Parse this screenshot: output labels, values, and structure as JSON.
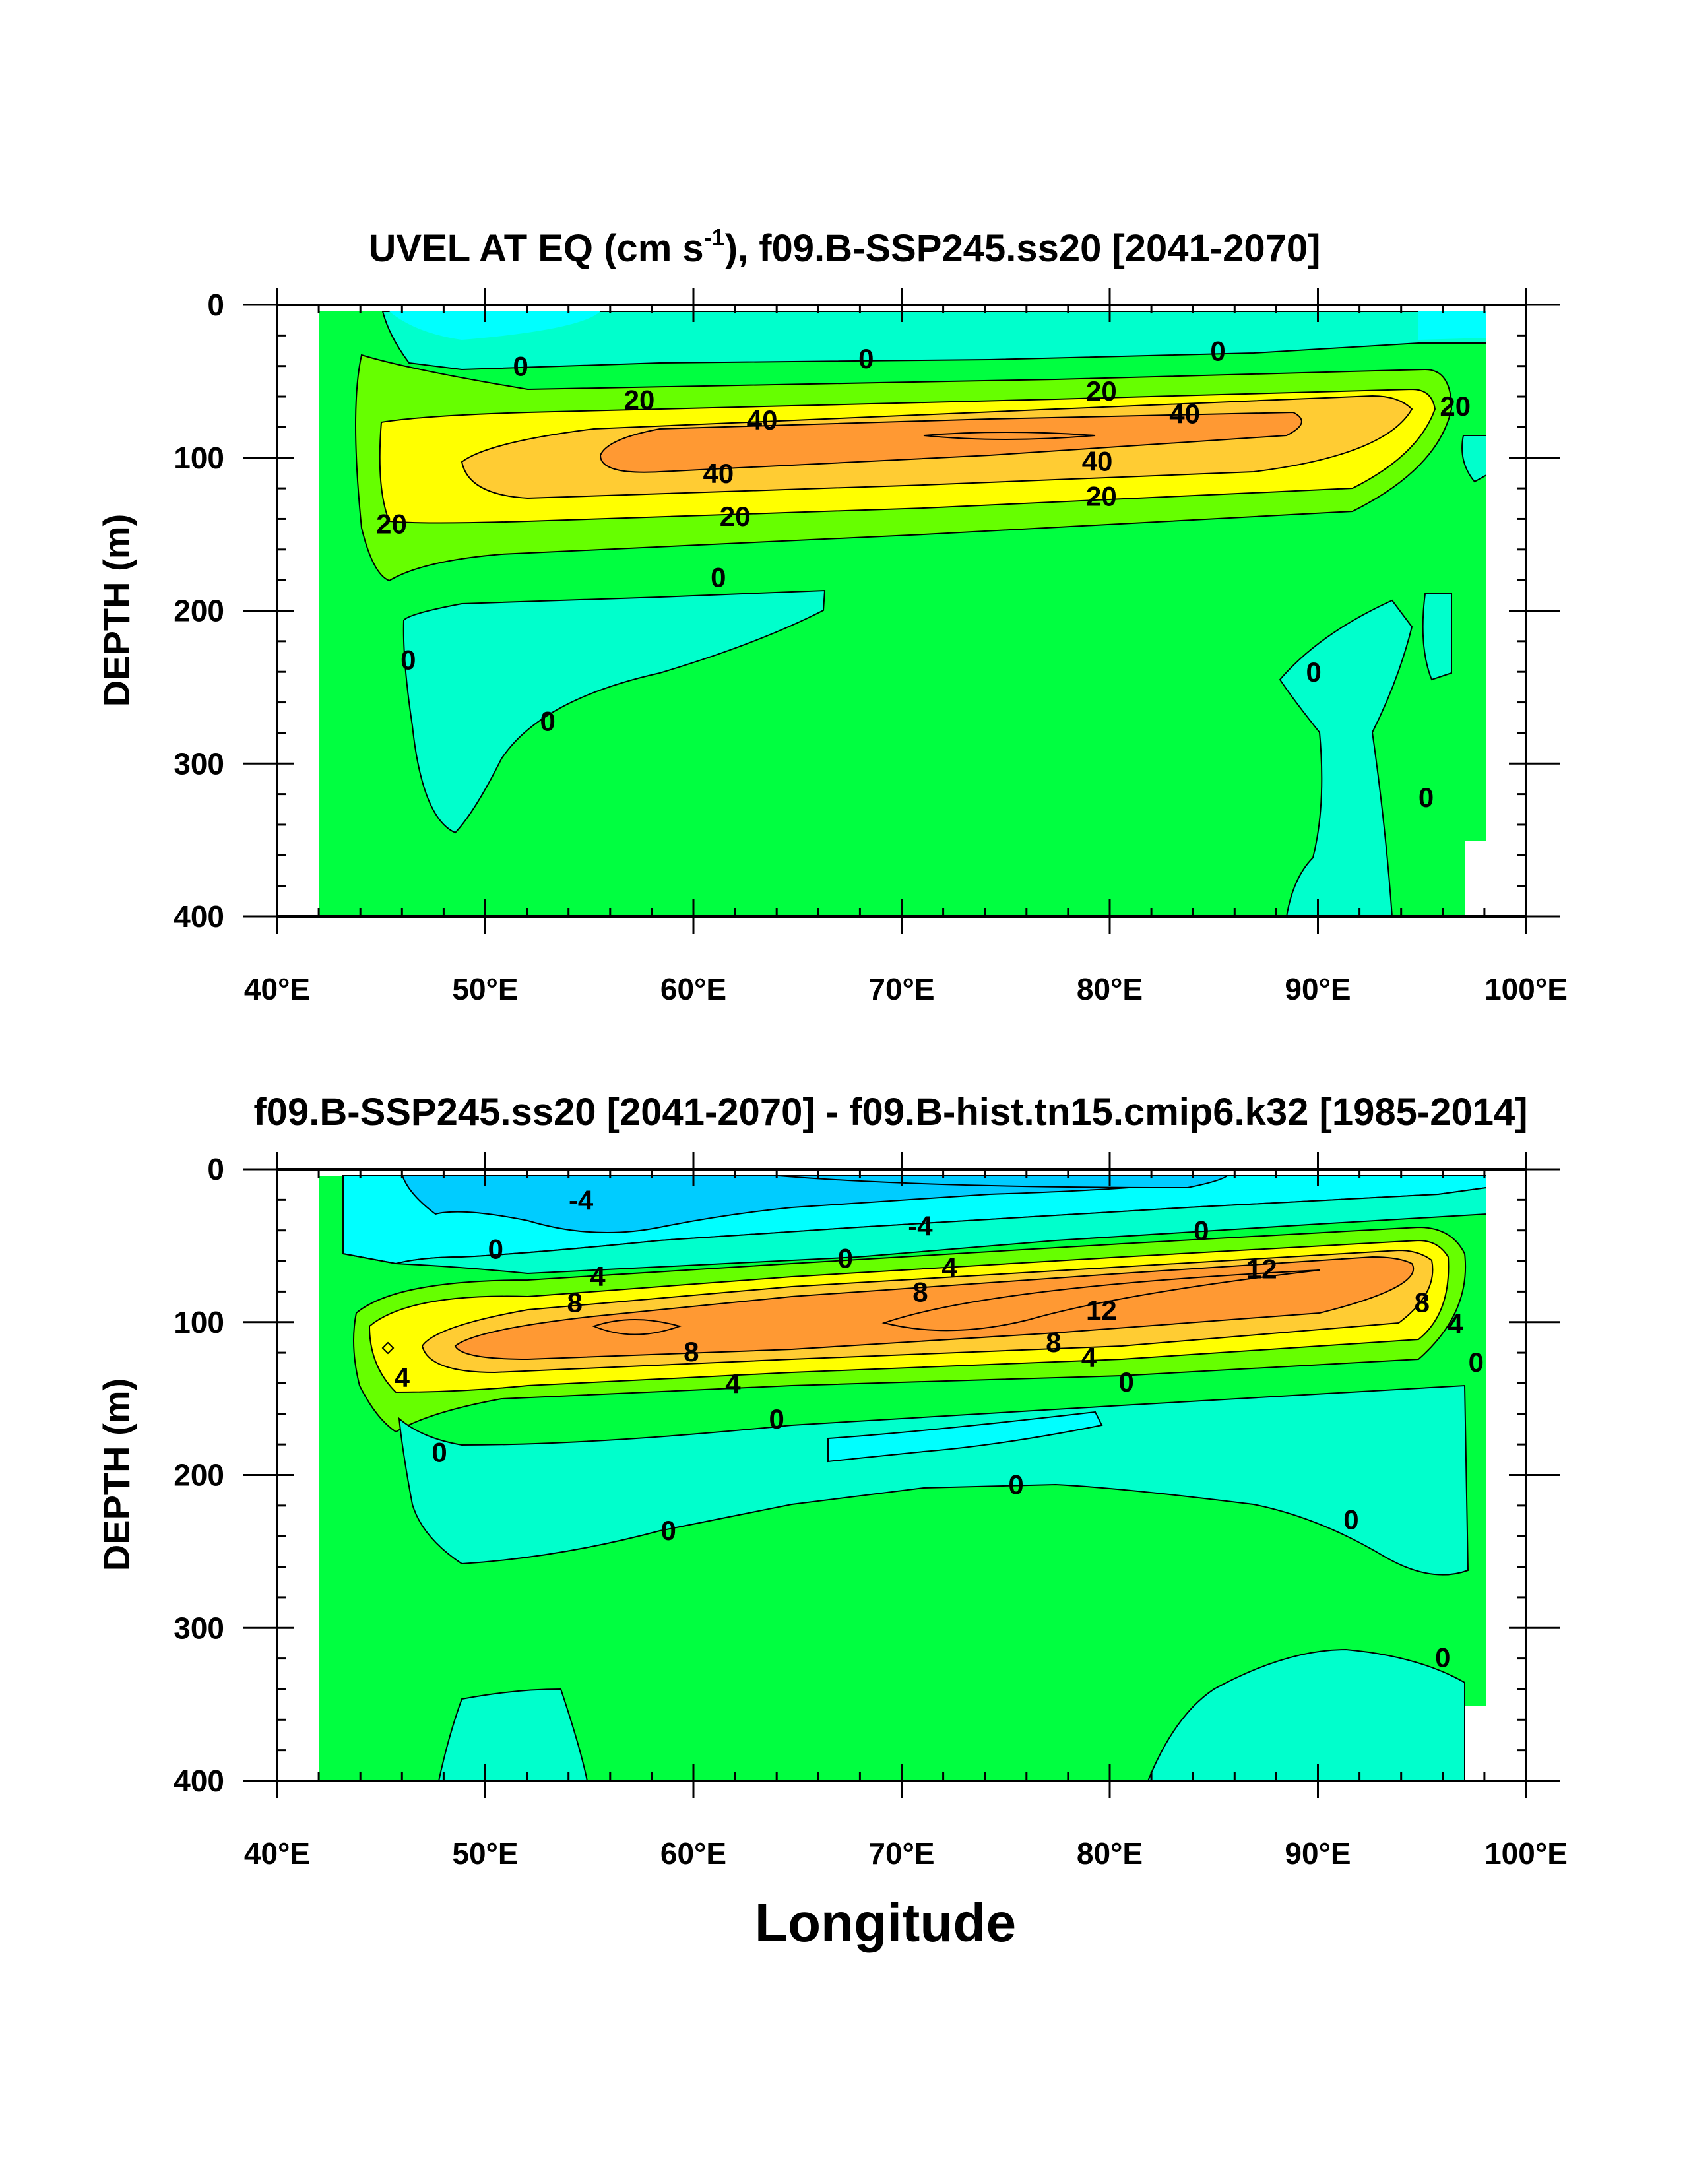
{
  "chart_data": [
    {
      "type": "contour",
      "title": "UVEL AT EQ (cm s",
      "title_sup": "-1",
      "title_rest": "), f09.B-SSP245.ss20 [2041-2070]",
      "ylabel": "DEPTH (m)",
      "xlabel": "",
      "xlim": [
        40,
        100
      ],
      "ylim": [
        0,
        400
      ],
      "y_inverted": true,
      "xticks": [
        40,
        50,
        60,
        70,
        80,
        90,
        100
      ],
      "xtick_labels": [
        "40°E",
        "50°E",
        "60°E",
        "70°E",
        "80°E",
        "90°E",
        "100°E"
      ],
      "yticks": [
        0,
        100,
        200,
        300,
        400
      ],
      "ytick_labels": [
        "0",
        "100",
        "200",
        "300",
        "400"
      ],
      "contour_levels": [
        0,
        20,
        40
      ],
      "fill_colors": {
        "below_zero": "#00ffcc",
        "zero_to_20": "#00ff40",
        "twenty_to_30": "#66ff00",
        "thirty_to_40": "#ffff00",
        "above_40": "#ffcc33",
        "max": "#ff9933",
        "surface": "#00ffff"
      },
      "contour_labels": [
        {
          "text": "0",
          "x": 51.7,
          "y": 40
        },
        {
          "text": "0",
          "x": 68.3,
          "y": 35
        },
        {
          "text": "0",
          "x": 85.2,
          "y": 30
        },
        {
          "text": "20",
          "x": 57.4,
          "y": 62
        },
        {
          "text": "20",
          "x": 79.6,
          "y": 56
        },
        {
          "text": "20",
          "x": 96.6,
          "y": 66
        },
        {
          "text": "40",
          "x": 63.3,
          "y": 75
        },
        {
          "text": "40",
          "x": 83.6,
          "y": 71
        },
        {
          "text": "40",
          "x": 61.2,
          "y": 110
        },
        {
          "text": "40",
          "x": 79.4,
          "y": 102
        },
        {
          "text": "20",
          "x": 45.5,
          "y": 143
        },
        {
          "text": "20",
          "x": 62.0,
          "y": 138
        },
        {
          "text": "20",
          "x": 79.6,
          "y": 125
        },
        {
          "text": "0",
          "x": 61.2,
          "y": 178
        },
        {
          "text": "0",
          "x": 46.3,
          "y": 232
        },
        {
          "text": "0",
          "x": 53.0,
          "y": 272
        },
        {
          "text": "0",
          "x": 89.8,
          "y": 240
        },
        {
          "text": "0",
          "x": 95.2,
          "y": 322
        }
      ]
    },
    {
      "type": "contour",
      "title": "f09.B-SSP245.ss20 [2041-2070] - f09.B-hist.tn15.cmip6.k32 [1985-2014]",
      "ylabel": "DEPTH (m)",
      "xlabel": "Longitude",
      "xlim": [
        40,
        100
      ],
      "ylim": [
        0,
        400
      ],
      "y_inverted": true,
      "xticks": [
        40,
        50,
        60,
        70,
        80,
        90,
        100
      ],
      "xtick_labels": [
        "40°E",
        "50°E",
        "60°E",
        "70°E",
        "80°E",
        "90°E",
        "100°E"
      ],
      "yticks": [
        0,
        100,
        200,
        300,
        400
      ],
      "ytick_labels": [
        "0",
        "100",
        "200",
        "300",
        "400"
      ],
      "contour_levels": [
        -4,
        0,
        4,
        8,
        12
      ],
      "fill_colors": {
        "below_minus4": "#00ccff",
        "minus4_to_0": "#00ffff",
        "slightly_negative": "#00ffcc",
        "zero_to_2": "#00ff40",
        "two_to_4": "#66ff00",
        "four_to_6": "#ffff00",
        "six_to_8": "#ffcc33",
        "above_8": "#ff9933"
      },
      "contour_labels": [
        {
          "text": "-4",
          "x": 54.6,
          "y": 20
        },
        {
          "text": "-4",
          "x": 70.9,
          "y": 37
        },
        {
          "text": "0",
          "x": 50.5,
          "y": 52
        },
        {
          "text": "0",
          "x": 67.3,
          "y": 58
        },
        {
          "text": "0",
          "x": 84.4,
          "y": 40
        },
        {
          "text": "4",
          "x": 55.4,
          "y": 70
        },
        {
          "text": "4",
          "x": 72.3,
          "y": 64
        },
        {
          "text": "8",
          "x": 54.3,
          "y": 87
        },
        {
          "text": "8",
          "x": 70.9,
          "y": 80
        },
        {
          "text": "12",
          "x": 87.3,
          "y": 65
        },
        {
          "text": "12",
          "x": 79.6,
          "y": 92
        },
        {
          "text": "8",
          "x": 95.0,
          "y": 87
        },
        {
          "text": "4",
          "x": 96.6,
          "y": 101
        },
        {
          "text": "8",
          "x": 59.9,
          "y": 119
        },
        {
          "text": "8",
          "x": 77.3,
          "y": 113
        },
        {
          "text": "4",
          "x": 79.0,
          "y": 123
        },
        {
          "text": "4",
          "x": 46.0,
          "y": 136
        },
        {
          "text": "4",
          "x": 61.9,
          "y": 140
        },
        {
          "text": "0",
          "x": 80.8,
          "y": 139
        },
        {
          "text": "0",
          "x": 97.6,
          "y": 126
        },
        {
          "text": "0",
          "x": 64.0,
          "y": 163
        },
        {
          "text": "0",
          "x": 47.8,
          "y": 185
        },
        {
          "text": "0",
          "x": 75.5,
          "y": 206
        },
        {
          "text": "0",
          "x": 58.8,
          "y": 236
        },
        {
          "text": "0",
          "x": 91.6,
          "y": 229
        },
        {
          "text": "0",
          "x": 96.0,
          "y": 319
        }
      ]
    }
  ]
}
